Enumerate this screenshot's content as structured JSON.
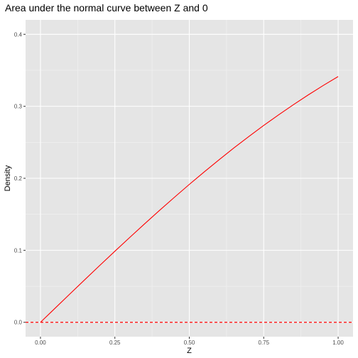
{
  "chart_data": {
    "type": "line",
    "title": "Area under the normal curve between Z and 0",
    "xlabel": "Z",
    "ylabel": "Density",
    "xlim": [
      -0.05,
      1.05
    ],
    "ylim": [
      -0.02,
      0.42
    ],
    "x_ticks": [
      0.0,
      0.25,
      0.5,
      0.75,
      1.0
    ],
    "x_tick_labels": [
      "0.00",
      "0.25",
      "0.50",
      "0.75",
      "1.00"
    ],
    "y_ticks": [
      0.0,
      0.1,
      0.2,
      0.3,
      0.4
    ],
    "y_tick_labels": [
      "0.0",
      "0.1",
      "0.2",
      "0.3",
      "0.4"
    ],
    "grid": true,
    "series": [
      {
        "color": "#ff0000",
        "x": [
          0.0,
          0.05,
          0.1,
          0.15,
          0.2,
          0.25,
          0.3,
          0.35,
          0.4,
          0.45,
          0.5,
          0.55,
          0.6,
          0.65,
          0.7,
          0.75,
          0.8,
          0.85,
          0.9,
          0.95,
          1.0
        ],
        "y": [
          0.0,
          0.0199,
          0.0398,
          0.0596,
          0.0793,
          0.0987,
          0.1179,
          0.1368,
          0.1554,
          0.1736,
          0.1915,
          0.2088,
          0.2257,
          0.2422,
          0.258,
          0.2734,
          0.2881,
          0.3023,
          0.3159,
          0.3289,
          0.3413
        ]
      }
    ],
    "hline": {
      "y": 0.0,
      "color": "#ff0000",
      "style": "dashed"
    }
  },
  "colors": {
    "panel_background": "#e5e5e5",
    "grid_major": "#ffffff",
    "grid_minor": "#f2f2f2",
    "line": "#ff0000"
  }
}
